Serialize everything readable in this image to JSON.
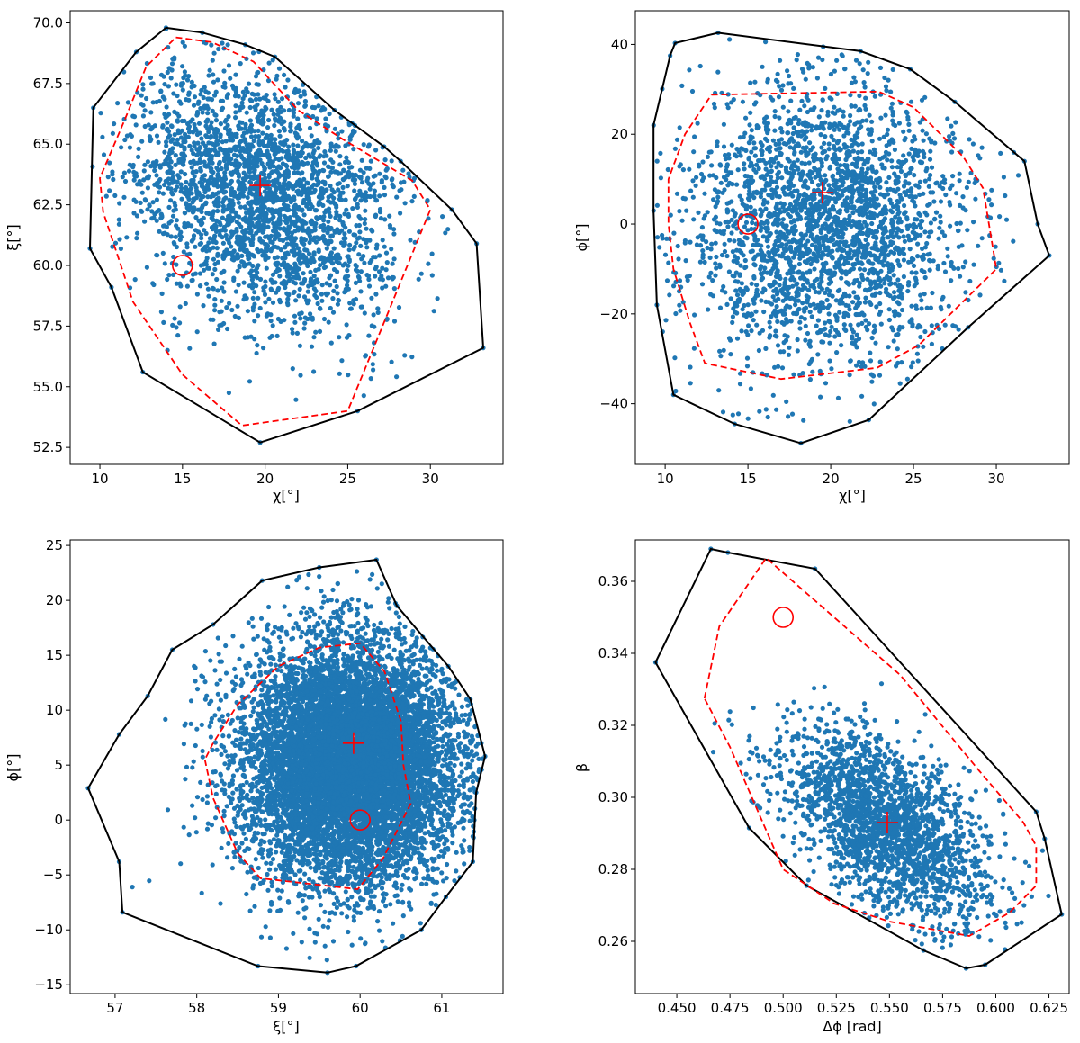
{
  "colors": {
    "points": "#1f77b4",
    "outer_hull": "#000000",
    "inner_hull": "#ff0000",
    "marker": "#ff0000"
  },
  "chart_data": [
    {
      "type": "scatter",
      "panel": "top-left",
      "xlabel": "χ[°]",
      "ylabel": "ξ[°]",
      "xlim": [
        8.2,
        34.4
      ],
      "ylim": [
        51.8,
        70.5
      ],
      "xticks": [
        {
          "v": 10,
          "label": "10"
        },
        {
          "v": 15,
          "label": "15"
        },
        {
          "v": 20,
          "label": "20"
        },
        {
          "v": 25,
          "label": "25"
        },
        {
          "v": 30,
          "label": "30"
        }
      ],
      "yticks": [
        {
          "v": 52.5,
          "label": "52.5"
        },
        {
          "v": 55,
          "label": "55.0"
        },
        {
          "v": 57.5,
          "label": "57.5"
        },
        {
          "v": 60,
          "label": "60.0"
        },
        {
          "v": 62.5,
          "label": "62.5"
        },
        {
          "v": 65,
          "label": "65.0"
        },
        {
          "v": 67.5,
          "label": "67.5"
        },
        {
          "v": 70,
          "label": "70.0"
        }
      ],
      "cloud": {
        "n": 2600,
        "center": [
          19.7,
          63.0
        ],
        "sd": [
          4.0,
          2.7
        ],
        "rho": -0.25,
        "seed": 11
      },
      "outer_hull": [
        [
          14.0,
          69.8
        ],
        [
          16.2,
          69.6
        ],
        [
          18.8,
          69.1
        ],
        [
          20.6,
          68.6
        ],
        [
          24.2,
          66.4
        ],
        [
          27.2,
          64.9
        ],
        [
          28.2,
          64.3
        ],
        [
          31.3,
          62.3
        ],
        [
          32.8,
          60.9
        ],
        [
          33.2,
          56.6
        ],
        [
          25.6,
          54.0
        ],
        [
          19.7,
          52.7
        ],
        [
          12.6,
          55.6
        ],
        [
          10.7,
          59.1
        ],
        [
          9.4,
          60.7
        ],
        [
          9.6,
          66.5
        ],
        [
          12.2,
          68.8
        ]
      ],
      "inner_hull": [
        [
          14.6,
          69.4
        ],
        [
          16.8,
          69.2
        ],
        [
          19.3,
          68.4
        ],
        [
          22.0,
          66.4
        ],
        [
          24.7,
          65.2
        ],
        [
          28.9,
          63.5
        ],
        [
          30.0,
          62.3
        ],
        [
          25.0,
          54.0
        ],
        [
          18.6,
          53.4
        ],
        [
          15.0,
          55.5
        ],
        [
          12.0,
          58.5
        ],
        [
          10.2,
          62.2
        ],
        [
          10.0,
          63.6
        ],
        [
          11.5,
          66.0
        ],
        [
          12.8,
          68.2
        ]
      ],
      "truth": {
        "x": 15.0,
        "y": 60.0
      },
      "estimate": {
        "x": 19.7,
        "y": 63.3
      }
    },
    {
      "type": "scatter",
      "panel": "top-right",
      "xlabel": "χ[°]",
      "ylabel": "ϕ[°]",
      "xlim": [
        8.2,
        34.4
      ],
      "ylim": [
        -53.5,
        47.5
      ],
      "xticks": [
        {
          "v": 10,
          "label": "10"
        },
        {
          "v": 15,
          "label": "15"
        },
        {
          "v": 20,
          "label": "20"
        },
        {
          "v": 25,
          "label": "25"
        },
        {
          "v": 30,
          "label": "30"
        }
      ],
      "yticks": [
        {
          "v": -40,
          "label": "−40"
        },
        {
          "v": -20,
          "label": "−20"
        },
        {
          "v": 0,
          "label": "0"
        },
        {
          "v": 20,
          "label": "20"
        },
        {
          "v": 40,
          "label": "40"
        }
      ],
      "cloud": {
        "n": 2600,
        "center": [
          19.6,
          0.0
        ],
        "sd": [
          4.1,
          15.5
        ],
        "rho": 0.0,
        "seed": 23
      },
      "outer_hull": [
        [
          10.3,
          37.5
        ],
        [
          10.6,
          40.3
        ],
        [
          13.2,
          42.6
        ],
        [
          21.8,
          38.5
        ],
        [
          24.8,
          34.5
        ],
        [
          27.5,
          27.2
        ],
        [
          31.7,
          14.0
        ],
        [
          32.5,
          0.0
        ],
        [
          33.2,
          -7.0
        ],
        [
          28.3,
          -23.0
        ],
        [
          22.3,
          -43.6
        ],
        [
          18.2,
          -48.8
        ],
        [
          14.2,
          -44.5
        ],
        [
          10.5,
          -38.0
        ],
        [
          9.5,
          -18.0
        ],
        [
          9.3,
          3.0
        ],
        [
          9.3,
          22.0
        ]
      ],
      "inner_hull": [
        [
          12.8,
          28.8
        ],
        [
          22.9,
          29.5
        ],
        [
          25.0,
          26.0
        ],
        [
          28.0,
          15.0
        ],
        [
          29.2,
          8.0
        ],
        [
          30.0,
          -10.0
        ],
        [
          25.3,
          -27.0
        ],
        [
          22.8,
          -32.0
        ],
        [
          17.0,
          -34.5
        ],
        [
          12.4,
          -31.0
        ],
        [
          11.5,
          -22.0
        ],
        [
          10.5,
          -10.0
        ],
        [
          10.2,
          0.0
        ],
        [
          10.2,
          10.0
        ],
        [
          11.2,
          20.0
        ]
      ],
      "truth": {
        "x": 15.0,
        "y": 0.0
      },
      "estimate": {
        "x": 19.5,
        "y": 7.0
      }
    },
    {
      "type": "scatter",
      "panel": "bottom-left",
      "xlabel": "ξ[°]",
      "ylabel": "ϕ[°]",
      "xlim": [
        56.45,
        61.75
      ],
      "ylim": [
        -15.8,
        25.5
      ],
      "xticks": [
        {
          "v": 57,
          "label": "57"
        },
        {
          "v": 58,
          "label": "58"
        },
        {
          "v": 59,
          "label": "59"
        },
        {
          "v": 60,
          "label": "60"
        },
        {
          "v": 61,
          "label": "61"
        }
      ],
      "yticks": [
        {
          "v": -15,
          "label": "−15"
        },
        {
          "v": -10,
          "label": "−10"
        },
        {
          "v": -5,
          "label": "−5"
        },
        {
          "v": 0,
          "label": "0"
        },
        {
          "v": 5,
          "label": "5"
        },
        {
          "v": 10,
          "label": "10"
        },
        {
          "v": 15,
          "label": "15"
        },
        {
          "v": 20,
          "label": "20"
        },
        {
          "v": 25,
          "label": "25"
        }
      ],
      "cloud": {
        "n": 9000,
        "center": [
          59.9,
          5.2
        ],
        "sd": [
          0.68,
          5.6
        ],
        "rho": 0.0,
        "seed": 37
      },
      "outer_hull": [
        [
          56.67,
          2.9
        ],
        [
          57.05,
          -3.8
        ],
        [
          57.09,
          -8.4
        ],
        [
          58.75,
          -13.3
        ],
        [
          59.6,
          -13.9
        ],
        [
          59.95,
          -13.3
        ],
        [
          60.75,
          -10.0
        ],
        [
          61.05,
          -7.0
        ],
        [
          61.38,
          -3.8
        ],
        [
          61.42,
          2.5
        ],
        [
          61.53,
          5.8
        ],
        [
          61.35,
          11.0
        ],
        [
          61.08,
          14.0
        ],
        [
          60.45,
          19.5
        ],
        [
          60.2,
          23.7
        ],
        [
          59.5,
          23.0
        ],
        [
          58.8,
          21.8
        ],
        [
          58.2,
          17.8
        ],
        [
          57.7,
          15.5
        ],
        [
          57.4,
          11.3
        ],
        [
          57.05,
          7.8
        ]
      ],
      "inner_hull": [
        [
          58.1,
          5.5
        ],
        [
          58.2,
          2.0
        ],
        [
          58.5,
          -3.0
        ],
        [
          58.78,
          -5.3
        ],
        [
          59.97,
          -6.3
        ],
        [
          60.28,
          -3.5
        ],
        [
          60.62,
          1.5
        ],
        [
          60.53,
          5.0
        ],
        [
          60.5,
          9.0
        ],
        [
          60.3,
          13.5
        ],
        [
          60.0,
          16.1
        ],
        [
          59.5,
          15.7
        ],
        [
          59.0,
          14.0
        ],
        [
          58.5,
          10.5
        ],
        [
          58.2,
          7.0
        ]
      ],
      "truth": {
        "x": 60.0,
        "y": 0.0
      },
      "estimate": {
        "x": 59.92,
        "y": 7.0
      }
    },
    {
      "type": "scatter",
      "panel": "bottom-right",
      "xlabel": "Δϕ [rad]",
      "ylabel": "β",
      "xlim": [
        0.4305,
        0.6345
      ],
      "ylim": [
        0.2455,
        0.3715
      ],
      "xticks": [
        {
          "v": 0.45,
          "label": "0.450"
        },
        {
          "v": 0.475,
          "label": "0.475"
        },
        {
          "v": 0.5,
          "label": "0.500"
        },
        {
          "v": 0.525,
          "label": "0.525"
        },
        {
          "v": 0.55,
          "label": "0.550"
        },
        {
          "v": 0.575,
          "label": "0.575"
        },
        {
          "v": 0.6,
          "label": "0.600"
        },
        {
          "v": 0.625,
          "label": "0.625"
        }
      ],
      "yticks": [
        {
          "v": 0.26,
          "label": "0.26"
        },
        {
          "v": 0.28,
          "label": "0.28"
        },
        {
          "v": 0.3,
          "label": "0.30"
        },
        {
          "v": 0.32,
          "label": "0.32"
        },
        {
          "v": 0.34,
          "label": "0.34"
        },
        {
          "v": 0.36,
          "label": "0.36"
        }
      ],
      "cloud": {
        "n": 2200,
        "center": [
          0.549,
          0.292
        ],
        "sd": [
          0.024,
          0.0135
        ],
        "rho": -0.55,
        "seed": 53
      },
      "outer_hull": [
        [
          0.44,
          0.3375
        ],
        [
          0.466,
          0.369
        ],
        [
          0.474,
          0.368
        ],
        [
          0.515,
          0.3635
        ],
        [
          0.619,
          0.296
        ],
        [
          0.623,
          0.2885
        ],
        [
          0.631,
          0.2675
        ],
        [
          0.595,
          0.2535
        ],
        [
          0.586,
          0.2525
        ],
        [
          0.566,
          0.2575
        ],
        [
          0.511,
          0.2755
        ],
        [
          0.484,
          0.2915
        ]
      ],
      "inner_hull": [
        [
          0.463,
          0.3275
        ],
        [
          0.47,
          0.3475
        ],
        [
          0.492,
          0.3665
        ],
        [
          0.555,
          0.334
        ],
        [
          0.592,
          0.3075
        ],
        [
          0.613,
          0.293
        ],
        [
          0.619,
          0.2865
        ],
        [
          0.619,
          0.2755
        ],
        [
          0.6065,
          0.268
        ],
        [
          0.5875,
          0.2615
        ],
        [
          0.55,
          0.2655
        ],
        [
          0.524,
          0.2705
        ],
        [
          0.5,
          0.28
        ],
        [
          0.475,
          0.314
        ]
      ],
      "truth": {
        "x": 0.5,
        "y": 0.35
      },
      "estimate": {
        "x": 0.549,
        "y": 0.293
      }
    }
  ]
}
